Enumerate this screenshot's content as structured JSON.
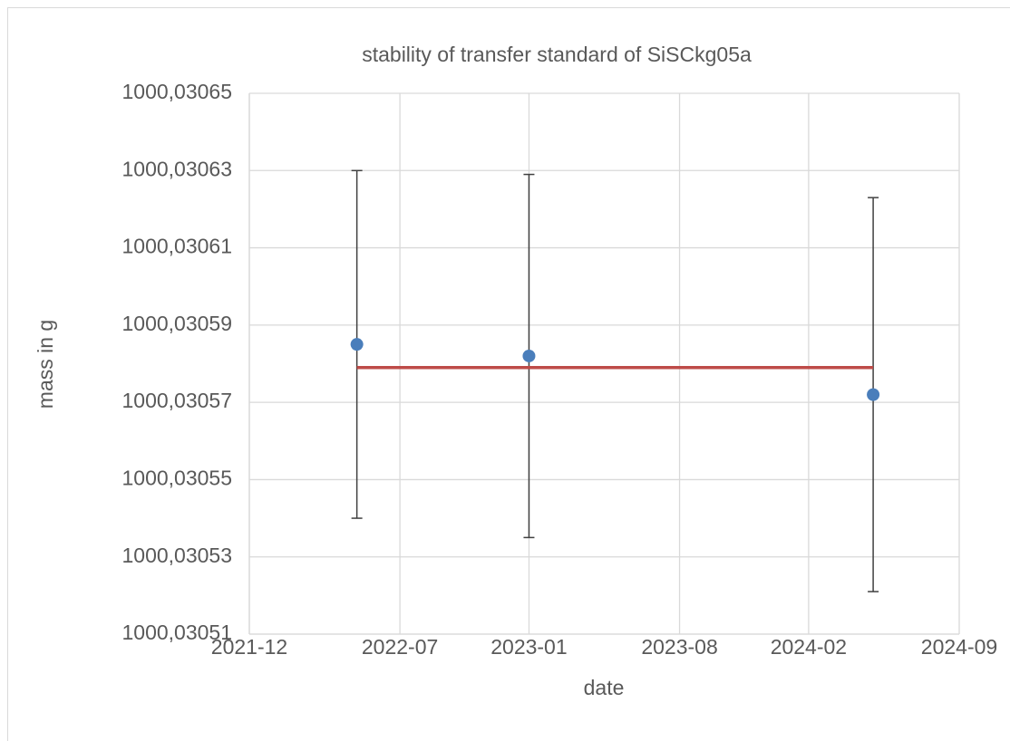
{
  "chart_data": {
    "type": "scatter",
    "title": "stability of transfer standard of SiSCkg05a",
    "x_label": "date",
    "y_label": "mass in g",
    "xlim": [
      "2021-12",
      "2024-09"
    ],
    "xticks": [
      "2021-12",
      "2022-07",
      "2023-01",
      "2023-08",
      "2024-02",
      "2024-09"
    ],
    "ylim": [
      1000.03051,
      1000.03065
    ],
    "yticks": [
      {
        "value": 1000.03051,
        "label": "1000,03051"
      },
      {
        "value": 1000.03053,
        "label": "1000,03053"
      },
      {
        "value": 1000.03055,
        "label": "1000,03055"
      },
      {
        "value": 1000.03057,
        "label": "1000,03057"
      },
      {
        "value": 1000.03059,
        "label": "1000,03059"
      },
      {
        "value": 1000.03061,
        "label": "1000,03061"
      },
      {
        "value": 1000.03063,
        "label": "1000,03063"
      },
      {
        "value": 1000.03065,
        "label": "1000,03065"
      }
    ],
    "grid": true,
    "series": [
      {
        "mode": "markers",
        "color": "#4a7ebb",
        "error_color": "#404040",
        "x": [
          "2022-05",
          "2023-01",
          "2024-05"
        ],
        "values": [
          1000.030585,
          1000.030582,
          1000.030572
        ],
        "errors": [
          4.5e-05,
          4.7e-05,
          5.1e-05
        ]
      },
      {
        "mode": "line",
        "color": "#be4b48",
        "x": [
          "2022-05",
          "2024-05"
        ],
        "values": [
          1000.030579,
          1000.030579
        ]
      }
    ]
  }
}
